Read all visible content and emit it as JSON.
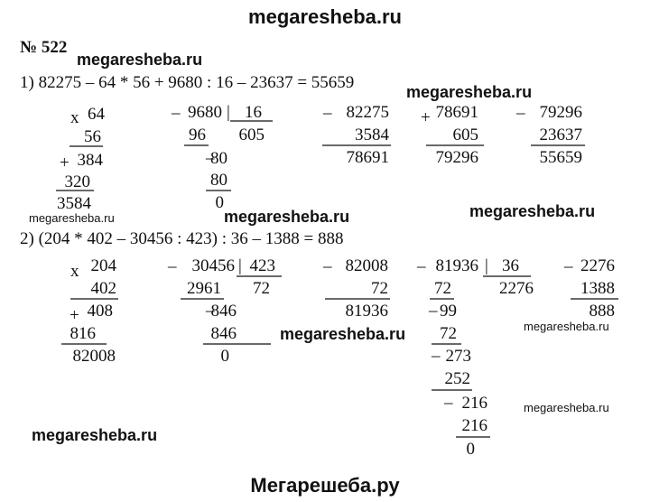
{
  "header": {
    "site": "megaresheba.ru"
  },
  "problem": {
    "number": "№ 522"
  },
  "part1": {
    "equation": "1) 82275 – 64 * 56 + 9680 : 16 – 23637 = 55659",
    "calcs": [
      [
        "x",
        "64",
        "56",
        "+",
        "384",
        "320",
        "3584"
      ],
      [
        "_",
        "9680",
        "|",
        "16",
        "96",
        "605",
        "_",
        "80",
        "80",
        "0"
      ],
      [
        "_",
        "82275",
        "3584",
        "78691"
      ],
      [
        "+",
        "78691",
        "605",
        "79296"
      ],
      [
        "_",
        "79296",
        "23637",
        "55659"
      ]
    ]
  },
  "part2": {
    "equation": "2) (204 * 402 – 30456 : 423) : 36 – 1388 = 888",
    "calcs": [
      [
        "x",
        "204",
        "402",
        "+",
        "408",
        "816",
        "82008"
      ],
      [
        "_",
        "30456",
        "|",
        "423",
        "2961",
        "72",
        "_",
        "846",
        "846",
        "0"
      ],
      [
        "_",
        "82008",
        "72",
        "81936"
      ],
      [
        "_",
        "81936",
        "|",
        "36",
        "72",
        "2276",
        "_",
        "99",
        "72",
        "_",
        "273",
        "252",
        "_",
        "216",
        "216",
        "0"
      ],
      [
        "_",
        "2276",
        "1388",
        "888"
      ]
    ]
  },
  "watermarks": [
    "megaresheba.ru",
    "megaresheba.ru",
    "megaresheba.ru",
    "megaresheba.ru",
    "megaresheba.ru",
    "megaresheba.ru",
    "megaresheba.ru",
    "megaresheba.ru",
    "megaresheba.ru"
  ],
  "footer": {
    "site": "Мегарешеба.ру"
  }
}
